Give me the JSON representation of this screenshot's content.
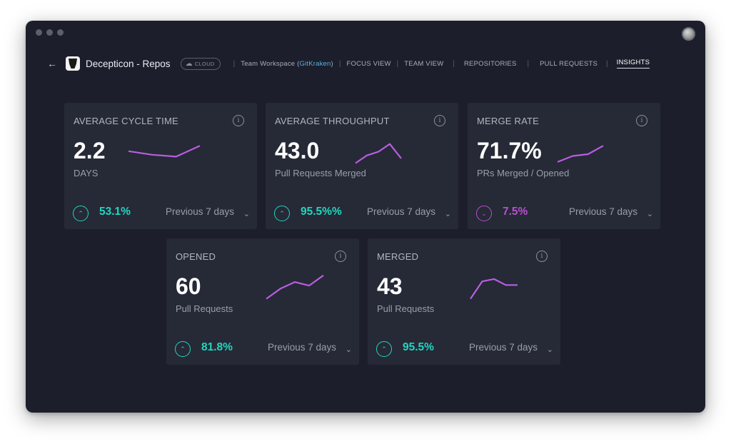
{
  "header": {
    "repo_title": "Decepticon - Repos",
    "cloud_label": "CLOUD",
    "workspace_prefix": "Team Workspace (",
    "workspace_org": "GitKraken",
    "workspace_suffix": ")",
    "nav": [
      "FOCUS VIEW",
      "TEAM VIEW",
      "REPOSITORIES",
      "PULL REQUESTS",
      "INSIGHTS"
    ],
    "active_nav": "INSIGHTS"
  },
  "colors": {
    "accent_up": "#21d6c0",
    "accent_down": "#b74fd0",
    "spark": "#b85ee0"
  },
  "cards": [
    {
      "title": "AVERAGE CYCLE TIME",
      "value": "2.2",
      "unit": "DAYS",
      "trend": "up",
      "change": "53.1%",
      "period": "Previous 7 days",
      "spark": [
        3.0,
        2.4,
        2.1,
        3.9
      ]
    },
    {
      "title": "AVERAGE THROUGHPUT",
      "value": "43.0",
      "unit": "Pull Requests Merged",
      "trend": "up",
      "change": "95.5%%",
      "period": "Previous 7 days",
      "spark": [
        1.0,
        2.3,
        2.9,
        4.2,
        1.8
      ]
    },
    {
      "title": "MERGE RATE",
      "value": "71.7%",
      "unit": "PRs Merged / Opened",
      "trend": "down",
      "change": "7.5%",
      "period": "Previous 7 days",
      "spark": [
        1.2,
        2.2,
        2.5,
        3.9
      ]
    },
    {
      "title": "OPENED",
      "value": "60",
      "unit": "Pull Requests",
      "trend": "up",
      "change": "81.8%",
      "period": "Previous 7 days",
      "spark": [
        1.0,
        2.7,
        3.8,
        3.2,
        4.9
      ]
    },
    {
      "title": "MERGED",
      "value": "43",
      "unit": "Pull Requests",
      "trend": "up",
      "change": "95.5%",
      "period": "Previous 7 days",
      "spark": [
        1.0,
        3.9,
        4.3,
        3.3,
        3.3
      ]
    }
  ],
  "icons": {
    "back": "back-arrow-icon",
    "info": "info-icon",
    "trend_up": "chevron-up-circle-icon",
    "trend_down": "chevron-down-circle-icon",
    "dropdown": "chevron-down-icon"
  }
}
